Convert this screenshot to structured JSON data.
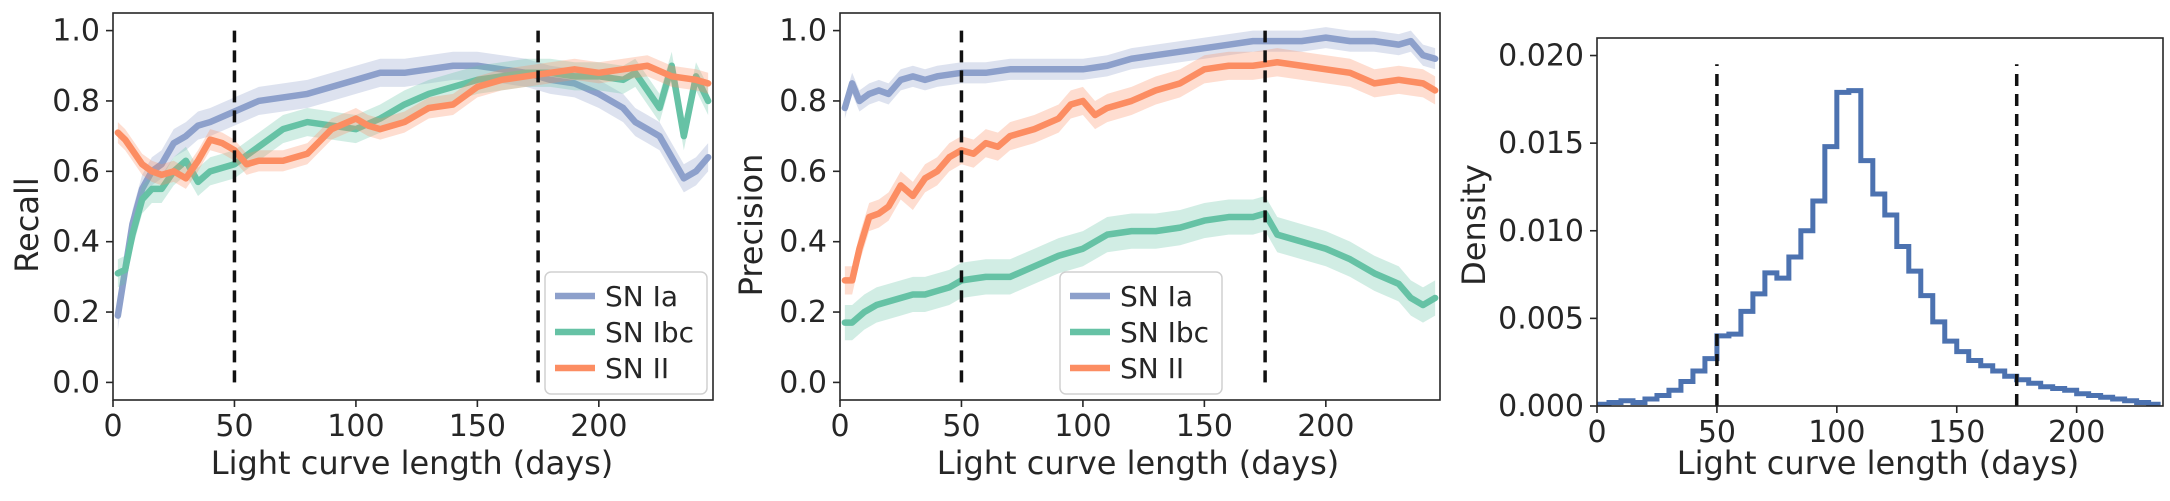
{
  "chart_data": [
    {
      "type": "line",
      "xlabel": "Light curve length (days)",
      "ylabel": "Recall",
      "xlim": [
        0,
        247
      ],
      "ylim": [
        -0.05,
        1.05
      ],
      "xticks": [
        0,
        50,
        100,
        150,
        200
      ],
      "yticks": [
        0.0,
        0.2,
        0.4,
        0.6,
        0.8,
        1.0
      ],
      "xtick_labels": [
        "0",
        "50",
        "100",
        "150",
        "200"
      ],
      "ytick_labels": [
        "0.0",
        "0.2",
        "0.4",
        "0.6",
        "0.8",
        "1.0"
      ],
      "vlines": [
        50,
        175
      ],
      "legend": "lower-right",
      "series": [
        {
          "name": "SN Ia",
          "color": "#8da0cb",
          "x": [
            2,
            5,
            8,
            12,
            16,
            20,
            25,
            30,
            35,
            40,
            50,
            60,
            70,
            80,
            90,
            100,
            110,
            120,
            130,
            140,
            150,
            160,
            170,
            180,
            190,
            200,
            210,
            215,
            220,
            225,
            230,
            235,
            240,
            245
          ],
          "y": [
            0.19,
            0.32,
            0.45,
            0.55,
            0.6,
            0.62,
            0.68,
            0.7,
            0.73,
            0.74,
            0.77,
            0.8,
            0.81,
            0.82,
            0.84,
            0.86,
            0.88,
            0.88,
            0.89,
            0.9,
            0.9,
            0.89,
            0.88,
            0.86,
            0.85,
            0.82,
            0.78,
            0.74,
            0.72,
            0.7,
            0.64,
            0.58,
            0.6,
            0.64
          ],
          "band": 0.04
        },
        {
          "name": "SN Ibc",
          "color": "#66c2a5",
          "x": [
            2,
            5,
            8,
            12,
            16,
            20,
            25,
            30,
            35,
            40,
            50,
            60,
            70,
            80,
            90,
            100,
            110,
            120,
            130,
            140,
            150,
            160,
            170,
            180,
            190,
            200,
            210,
            215,
            220,
            225,
            230,
            235,
            240,
            245
          ],
          "y": [
            0.31,
            0.32,
            0.42,
            0.52,
            0.55,
            0.55,
            0.6,
            0.63,
            0.57,
            0.6,
            0.62,
            0.67,
            0.72,
            0.74,
            0.73,
            0.72,
            0.75,
            0.79,
            0.82,
            0.84,
            0.86,
            0.87,
            0.88,
            0.88,
            0.87,
            0.87,
            0.86,
            0.88,
            0.83,
            0.78,
            0.9,
            0.7,
            0.87,
            0.8
          ],
          "band": 0.04
        },
        {
          "name": "SN II",
          "color": "#fc8d62",
          "x": [
            2,
            5,
            8,
            12,
            16,
            20,
            25,
            30,
            35,
            40,
            45,
            50,
            55,
            60,
            70,
            80,
            90,
            100,
            105,
            110,
            120,
            130,
            140,
            150,
            160,
            170,
            180,
            190,
            200,
            210,
            220,
            230,
            240,
            245
          ],
          "y": [
            0.71,
            0.69,
            0.66,
            0.62,
            0.6,
            0.59,
            0.6,
            0.58,
            0.63,
            0.69,
            0.68,
            0.66,
            0.62,
            0.63,
            0.63,
            0.65,
            0.72,
            0.75,
            0.73,
            0.72,
            0.74,
            0.78,
            0.79,
            0.84,
            0.86,
            0.87,
            0.88,
            0.89,
            0.88,
            0.89,
            0.9,
            0.87,
            0.86,
            0.85
          ],
          "band": 0.03
        }
      ]
    },
    {
      "type": "line",
      "xlabel": "Light curve length (days)",
      "ylabel": "Precision",
      "xlim": [
        0,
        247
      ],
      "ylim": [
        -0.05,
        1.05
      ],
      "xticks": [
        0,
        50,
        100,
        150,
        200
      ],
      "yticks": [
        0.0,
        0.2,
        0.4,
        0.6,
        0.8,
        1.0
      ],
      "xtick_labels": [
        "0",
        "50",
        "100",
        "150",
        "200"
      ],
      "ytick_labels": [
        "0.0",
        "0.2",
        "0.4",
        "0.6",
        "0.8",
        "1.0"
      ],
      "vlines": [
        50,
        175
      ],
      "legend": "lower-center",
      "series": [
        {
          "name": "SN Ia",
          "color": "#8da0cb",
          "x": [
            2,
            5,
            8,
            12,
            16,
            20,
            25,
            30,
            35,
            40,
            50,
            60,
            70,
            80,
            90,
            100,
            110,
            120,
            130,
            140,
            150,
            160,
            170,
            180,
            190,
            200,
            210,
            220,
            230,
            235,
            240,
            245
          ],
          "y": [
            0.78,
            0.85,
            0.8,
            0.82,
            0.83,
            0.82,
            0.86,
            0.87,
            0.86,
            0.87,
            0.88,
            0.88,
            0.89,
            0.89,
            0.89,
            0.89,
            0.9,
            0.92,
            0.93,
            0.94,
            0.95,
            0.96,
            0.97,
            0.97,
            0.97,
            0.98,
            0.97,
            0.97,
            0.96,
            0.97,
            0.93,
            0.92
          ],
          "band": 0.03
        },
        {
          "name": "SN Ibc",
          "color": "#66c2a5",
          "x": [
            2,
            5,
            10,
            15,
            20,
            25,
            30,
            35,
            40,
            45,
            50,
            60,
            70,
            80,
            90,
            100,
            110,
            120,
            130,
            140,
            150,
            160,
            170,
            175,
            180,
            190,
            200,
            210,
            220,
            230,
            235,
            240,
            245
          ],
          "y": [
            0.17,
            0.17,
            0.2,
            0.22,
            0.23,
            0.24,
            0.25,
            0.25,
            0.26,
            0.27,
            0.29,
            0.3,
            0.3,
            0.33,
            0.36,
            0.38,
            0.42,
            0.43,
            0.43,
            0.44,
            0.46,
            0.47,
            0.47,
            0.48,
            0.42,
            0.4,
            0.38,
            0.35,
            0.31,
            0.28,
            0.24,
            0.22,
            0.24
          ],
          "band": 0.05
        },
        {
          "name": "SN II",
          "color": "#fc8d62",
          "x": [
            2,
            5,
            8,
            12,
            16,
            20,
            25,
            30,
            35,
            40,
            45,
            50,
            55,
            60,
            65,
            70,
            80,
            90,
            95,
            100,
            105,
            110,
            120,
            130,
            140,
            150,
            160,
            170,
            180,
            190,
            200,
            210,
            220,
            230,
            240,
            245
          ],
          "y": [
            0.29,
            0.29,
            0.38,
            0.47,
            0.48,
            0.5,
            0.56,
            0.53,
            0.58,
            0.6,
            0.64,
            0.66,
            0.65,
            0.68,
            0.67,
            0.7,
            0.72,
            0.75,
            0.79,
            0.8,
            0.76,
            0.78,
            0.8,
            0.83,
            0.85,
            0.89,
            0.9,
            0.9,
            0.91,
            0.9,
            0.89,
            0.88,
            0.85,
            0.86,
            0.85,
            0.83
          ],
          "band": 0.04
        }
      ]
    },
    {
      "type": "histogram",
      "xlabel": "Light curve length (days)",
      "ylabel": "Density",
      "xlim": [
        0,
        236
      ],
      "ylim": [
        0,
        0.021
      ],
      "xticks": [
        0,
        50,
        100,
        150,
        200
      ],
      "yticks": [
        0.0,
        0.005,
        0.01,
        0.015,
        0.02
      ],
      "xtick_labels": [
        "0",
        "50",
        "100",
        "150",
        "200"
      ],
      "ytick_labels": [
        "0.000",
        "0.005",
        "0.010",
        "0.015",
        "0.020"
      ],
      "vlines": [
        50,
        175
      ],
      "color": "#4c72b0",
      "bin_width": 5,
      "bin_start": 0,
      "values": [
        0.0001,
        0.0002,
        0.0003,
        0.0002,
        0.0004,
        0.0006,
        0.0009,
        0.0014,
        0.002,
        0.0027,
        0.004,
        0.0041,
        0.0054,
        0.0064,
        0.0076,
        0.0073,
        0.0085,
        0.01,
        0.0117,
        0.0148,
        0.0179,
        0.018,
        0.014,
        0.0121,
        0.0109,
        0.0091,
        0.0077,
        0.0063,
        0.0048,
        0.0037,
        0.0031,
        0.0026,
        0.0023,
        0.002,
        0.0017,
        0.0015,
        0.0013,
        0.0011,
        0.001,
        0.0009,
        0.0007,
        0.0006,
        0.0005,
        0.0004,
        0.0003,
        0.0002,
        0.0001
      ]
    }
  ]
}
